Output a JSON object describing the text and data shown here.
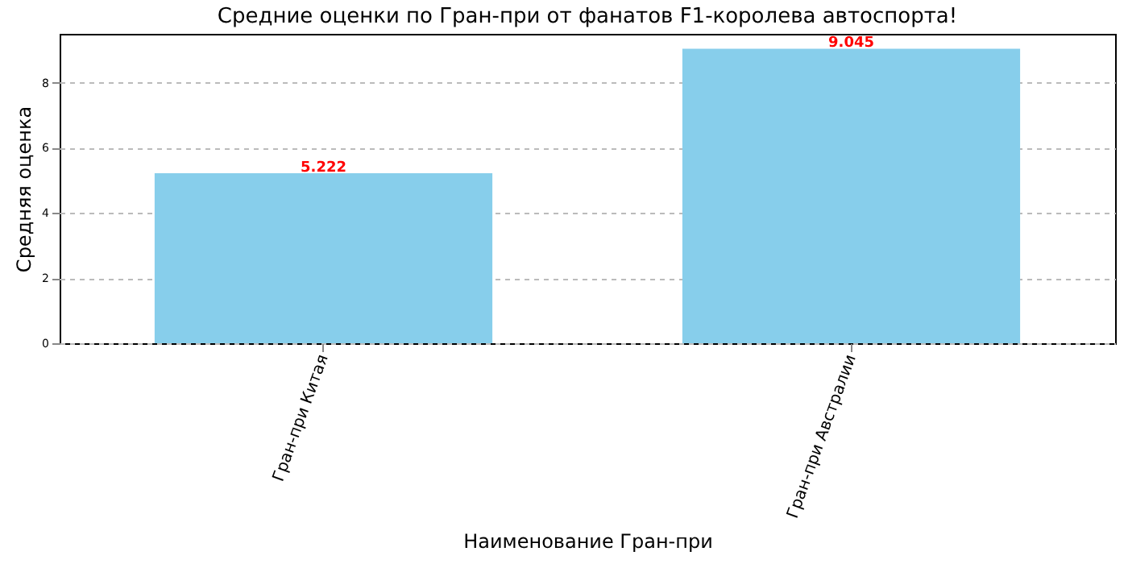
{
  "chart_data": {
    "type": "bar",
    "title": "Средние оценки по Гран-при от фанатов F1-королева автоспорта!",
    "xlabel": "Наименование Гран-при",
    "ylabel": "Средняя оценка",
    "categories": [
      "Гран-при Китая",
      "Гран-при Австралии"
    ],
    "values": [
      5.222,
      9.045
    ],
    "color": "#87ceeb",
    "ylim": [
      0,
      9.5
    ],
    "yticks": [
      0,
      2,
      4,
      6,
      8
    ],
    "grid": "y",
    "data_labels": true
  }
}
